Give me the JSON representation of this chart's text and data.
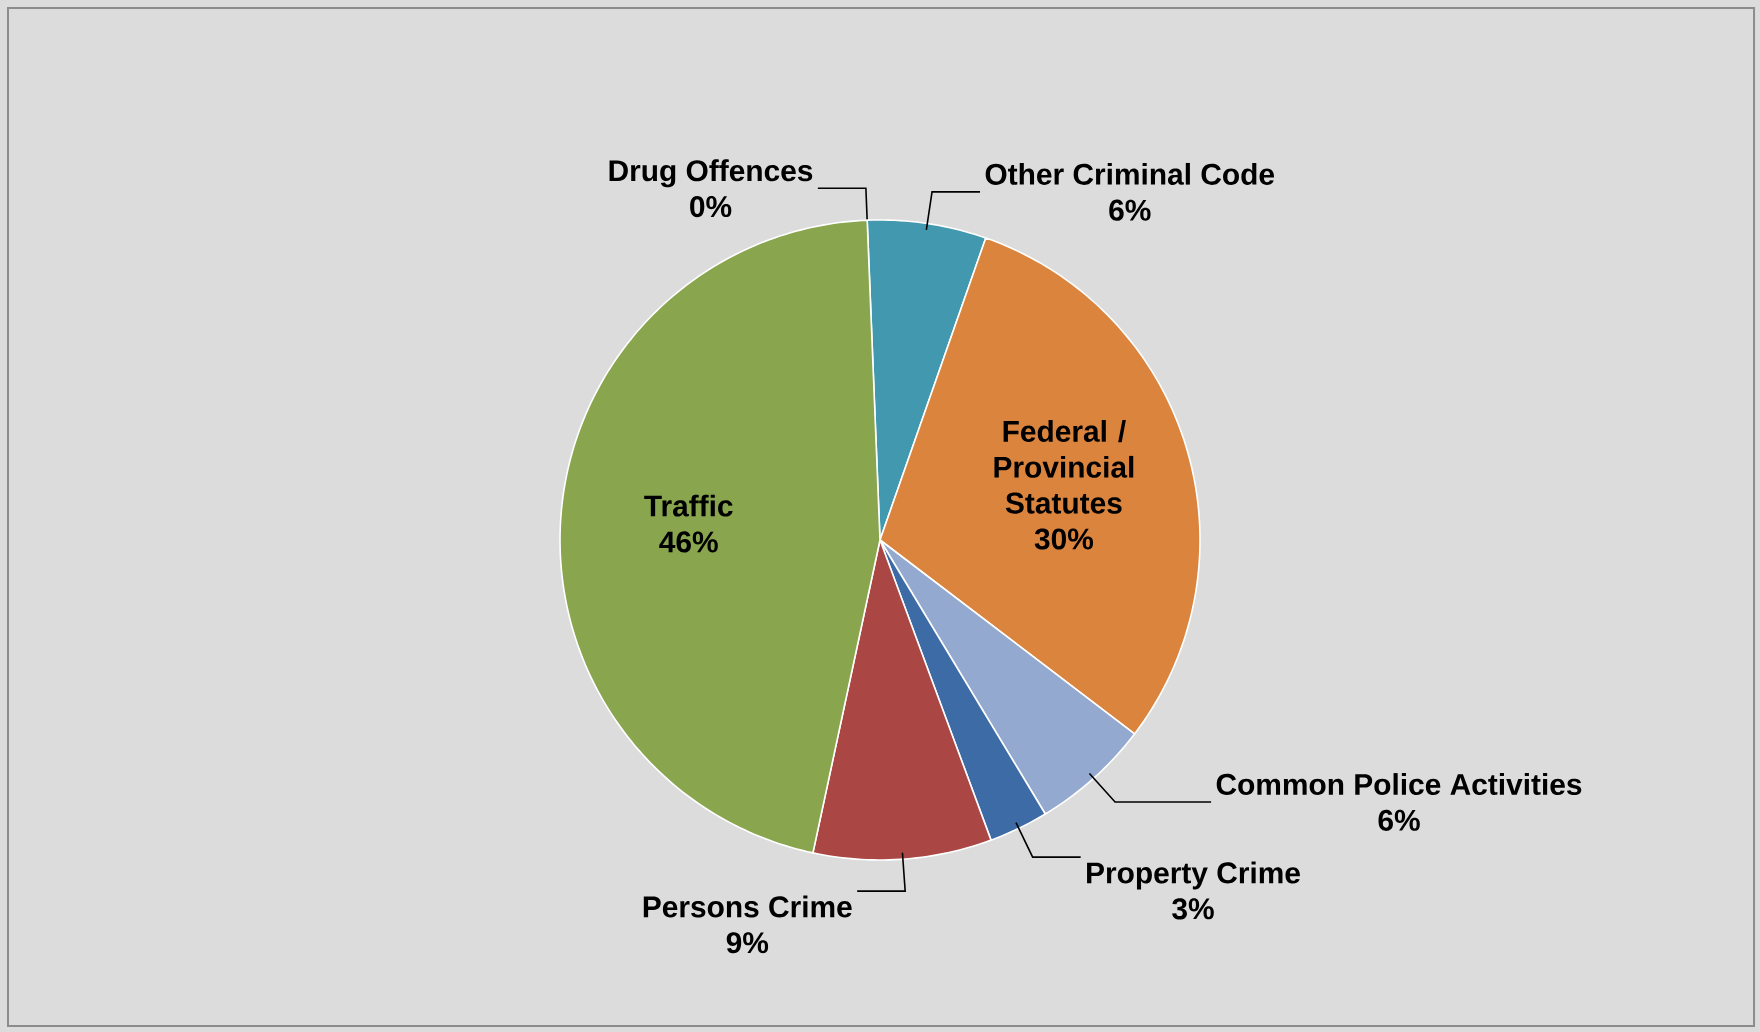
{
  "chart_data": {
    "type": "pie",
    "categories": [
      "Drug Offences",
      "Other Criminal Code",
      "Federal / Provincial Statutes",
      "Common Police Activities",
      "Property Crime",
      "Persons Crime",
      "Traffic"
    ],
    "values": [
      0,
      6,
      30,
      6,
      3,
      9,
      46
    ],
    "colors": [
      "#80699b",
      "#4198af",
      "#db843d",
      "#93a9cf",
      "#3d6ba6",
      "#aa4643",
      "#89a54e"
    ],
    "value_labels": [
      "0%",
      "6%",
      "30%",
      "6%",
      "3%",
      "9%",
      "46%"
    ]
  }
}
